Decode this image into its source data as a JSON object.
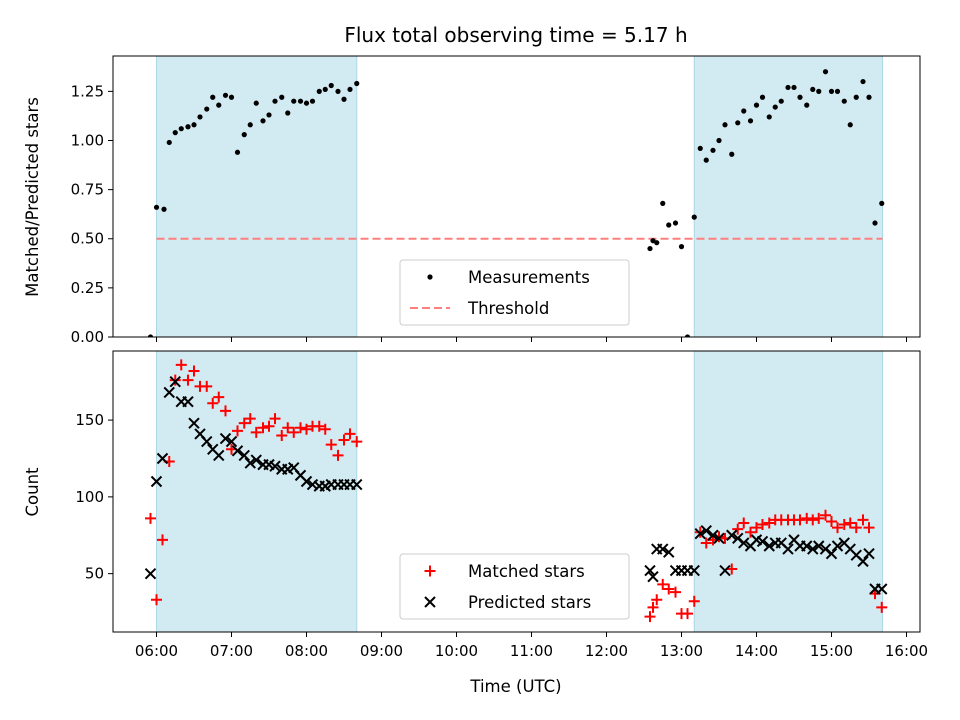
{
  "figure": {
    "title": "Flux total observing time = 5.17 h",
    "xlabel": "Time (UTC)",
    "x_ticks": [
      "06:00",
      "07:00",
      "08:00",
      "09:00",
      "10:00",
      "11:00",
      "12:00",
      "13:00",
      "14:00",
      "15:00",
      "16:00"
    ]
  },
  "chart_data": [
    {
      "type": "scatter",
      "ylabel": "Matched/Predicted stars",
      "ylim": [
        0,
        1.43
      ],
      "y_ticks": [
        "0.00",
        "0.25",
        "0.50",
        "0.75",
        "1.00",
        "1.25"
      ],
      "x_range_hours": [
        5.42,
        16.18
      ],
      "shaded_intervals": [
        [
          6.0,
          8.67
        ],
        [
          13.17,
          15.68
        ]
      ],
      "shade_color": "#add8e6",
      "threshold": {
        "label": "Threshold",
        "value": 0.5,
        "from": 6.0,
        "to": 15.68,
        "color": "#ff7f7f"
      },
      "legend": {
        "placement": "lower-center",
        "entries": [
          "Measurements",
          "Threshold"
        ]
      },
      "series": [
        {
          "name": "Measurements",
          "marker": "dot",
          "color": "#000000",
          "x": [
            5.92,
            6.0,
            6.1,
            6.17,
            6.25,
            6.33,
            6.42,
            6.5,
            6.58,
            6.67,
            6.75,
            6.83,
            6.92,
            7.0,
            7.08,
            7.17,
            7.25,
            7.33,
            7.42,
            7.5,
            7.58,
            7.67,
            7.75,
            7.83,
            7.92,
            8.0,
            8.08,
            8.17,
            8.25,
            8.33,
            8.42,
            8.5,
            8.58,
            8.67,
            12.58,
            12.62,
            12.67,
            12.75,
            12.83,
            12.92,
            13.0,
            13.08,
            13.17,
            13.25,
            13.33,
            13.42,
            13.5,
            13.58,
            13.67,
            13.75,
            13.83,
            13.92,
            14.0,
            14.08,
            14.17,
            14.25,
            14.33,
            14.42,
            14.5,
            14.58,
            14.67,
            14.75,
            14.83,
            14.92,
            15.0,
            15.08,
            15.17,
            15.25,
            15.33,
            15.42,
            15.5,
            15.58,
            15.67
          ],
          "y": [
            0.0,
            0.66,
            0.65,
            0.99,
            1.04,
            1.06,
            1.07,
            1.08,
            1.12,
            1.16,
            1.22,
            1.18,
            1.23,
            1.22,
            0.94,
            1.03,
            1.08,
            1.19,
            1.1,
            1.13,
            1.2,
            1.22,
            1.14,
            1.2,
            1.2,
            1.19,
            1.2,
            1.25,
            1.26,
            1.28,
            1.25,
            1.21,
            1.26,
            1.29,
            0.45,
            0.49,
            0.48,
            0.68,
            0.57,
            0.58,
            0.46,
            0.0,
            0.61,
            0.96,
            0.9,
            0.95,
            1.0,
            1.08,
            0.93,
            1.09,
            1.15,
            1.1,
            1.18,
            1.22,
            1.12,
            1.17,
            1.2,
            1.27,
            1.27,
            1.22,
            1.18,
            1.26,
            1.25,
            1.35,
            1.25,
            1.25,
            1.2,
            1.08,
            1.22,
            1.3,
            1.22,
            0.58,
            0.68
          ]
        }
      ]
    },
    {
      "type": "scatter",
      "ylabel": "Count",
      "ylim": [
        12,
        195
      ],
      "y_ticks": [
        "50",
        "100",
        "150"
      ],
      "x_range_hours": [
        5.42,
        16.18
      ],
      "shaded_intervals": [
        [
          6.0,
          8.67
        ],
        [
          13.17,
          15.68
        ]
      ],
      "shade_color": "#add8e6",
      "legend": {
        "placement": "lower-center",
        "entries": [
          "Matched stars",
          "Predicted stars"
        ]
      },
      "series": [
        {
          "name": "Matched stars",
          "marker": "plus",
          "color": "#ff0000",
          "x": [
            5.92,
            6.0,
            6.08,
            6.17,
            6.25,
            6.33,
            6.42,
            6.5,
            6.58,
            6.67,
            6.75,
            6.83,
            6.92,
            7.0,
            7.08,
            7.17,
            7.25,
            7.33,
            7.42,
            7.5,
            7.58,
            7.67,
            7.75,
            7.83,
            7.92,
            8.0,
            8.08,
            8.17,
            8.25,
            8.33,
            8.42,
            8.5,
            8.58,
            8.67,
            12.58,
            12.62,
            12.67,
            12.75,
            12.83,
            12.92,
            13.0,
            13.08,
            13.17,
            13.25,
            13.33,
            13.42,
            13.5,
            13.58,
            13.67,
            13.75,
            13.83,
            13.92,
            14.0,
            14.08,
            14.17,
            14.25,
            14.33,
            14.42,
            14.5,
            14.58,
            14.67,
            14.75,
            14.83,
            14.92,
            15.0,
            15.08,
            15.17,
            15.25,
            15.33,
            15.42,
            15.5,
            15.58,
            15.67
          ],
          "y": [
            86,
            33,
            72,
            123,
            176,
            186,
            176,
            182,
            172,
            172,
            161,
            165,
            156,
            131,
            143,
            148,
            151,
            142,
            145,
            146,
            151,
            140,
            145,
            142,
            145,
            144,
            146,
            146,
            144,
            134,
            127,
            137,
            141,
            136,
            22,
            28,
            33,
            43,
            40,
            38,
            24,
            24,
            32,
            77,
            70,
            72,
            74,
            73,
            53,
            79,
            83,
            77,
            80,
            82,
            83,
            85,
            85,
            85,
            85,
            85,
            86,
            85,
            86,
            88,
            84,
            80,
            82,
            83,
            80,
            85,
            80,
            37,
            28
          ]
        },
        {
          "name": "Predicted stars",
          "marker": "x",
          "color": "#000000",
          "x": [
            5.92,
            6.0,
            6.08,
            6.17,
            6.25,
            6.33,
            6.42,
            6.5,
            6.58,
            6.67,
            6.75,
            6.83,
            6.92,
            7.0,
            7.08,
            7.17,
            7.25,
            7.33,
            7.42,
            7.5,
            7.58,
            7.67,
            7.75,
            7.83,
            7.92,
            8.0,
            8.08,
            8.17,
            8.25,
            8.33,
            8.42,
            8.5,
            8.58,
            8.67,
            12.58,
            12.62,
            12.67,
            12.75,
            12.83,
            12.92,
            13.0,
            13.08,
            13.17,
            13.25,
            13.33,
            13.42,
            13.5,
            13.58,
            13.67,
            13.75,
            13.83,
            13.92,
            14.0,
            14.08,
            14.17,
            14.25,
            14.33,
            14.42,
            14.5,
            14.58,
            14.67,
            14.75,
            14.83,
            14.92,
            15.0,
            15.08,
            15.17,
            15.25,
            15.33,
            15.42,
            15.5,
            15.58,
            15.67
          ],
          "y": [
            50,
            110,
            125,
            168,
            175,
            162,
            162,
            148,
            141,
            136,
            131,
            127,
            138,
            136,
            130,
            127,
            122,
            124,
            121,
            121,
            120,
            118,
            118,
            119,
            114,
            110,
            108,
            107,
            107,
            108,
            108,
            108,
            108,
            108,
            52,
            48,
            66,
            66,
            64,
            52,
            52,
            52,
            52,
            76,
            78,
            75,
            73,
            52,
            75,
            73,
            70,
            68,
            72,
            71,
            68,
            70,
            70,
            66,
            72,
            68,
            68,
            66,
            68,
            66,
            63,
            68,
            70,
            66,
            62,
            58,
            63,
            40,
            40
          ]
        }
      ]
    }
  ]
}
